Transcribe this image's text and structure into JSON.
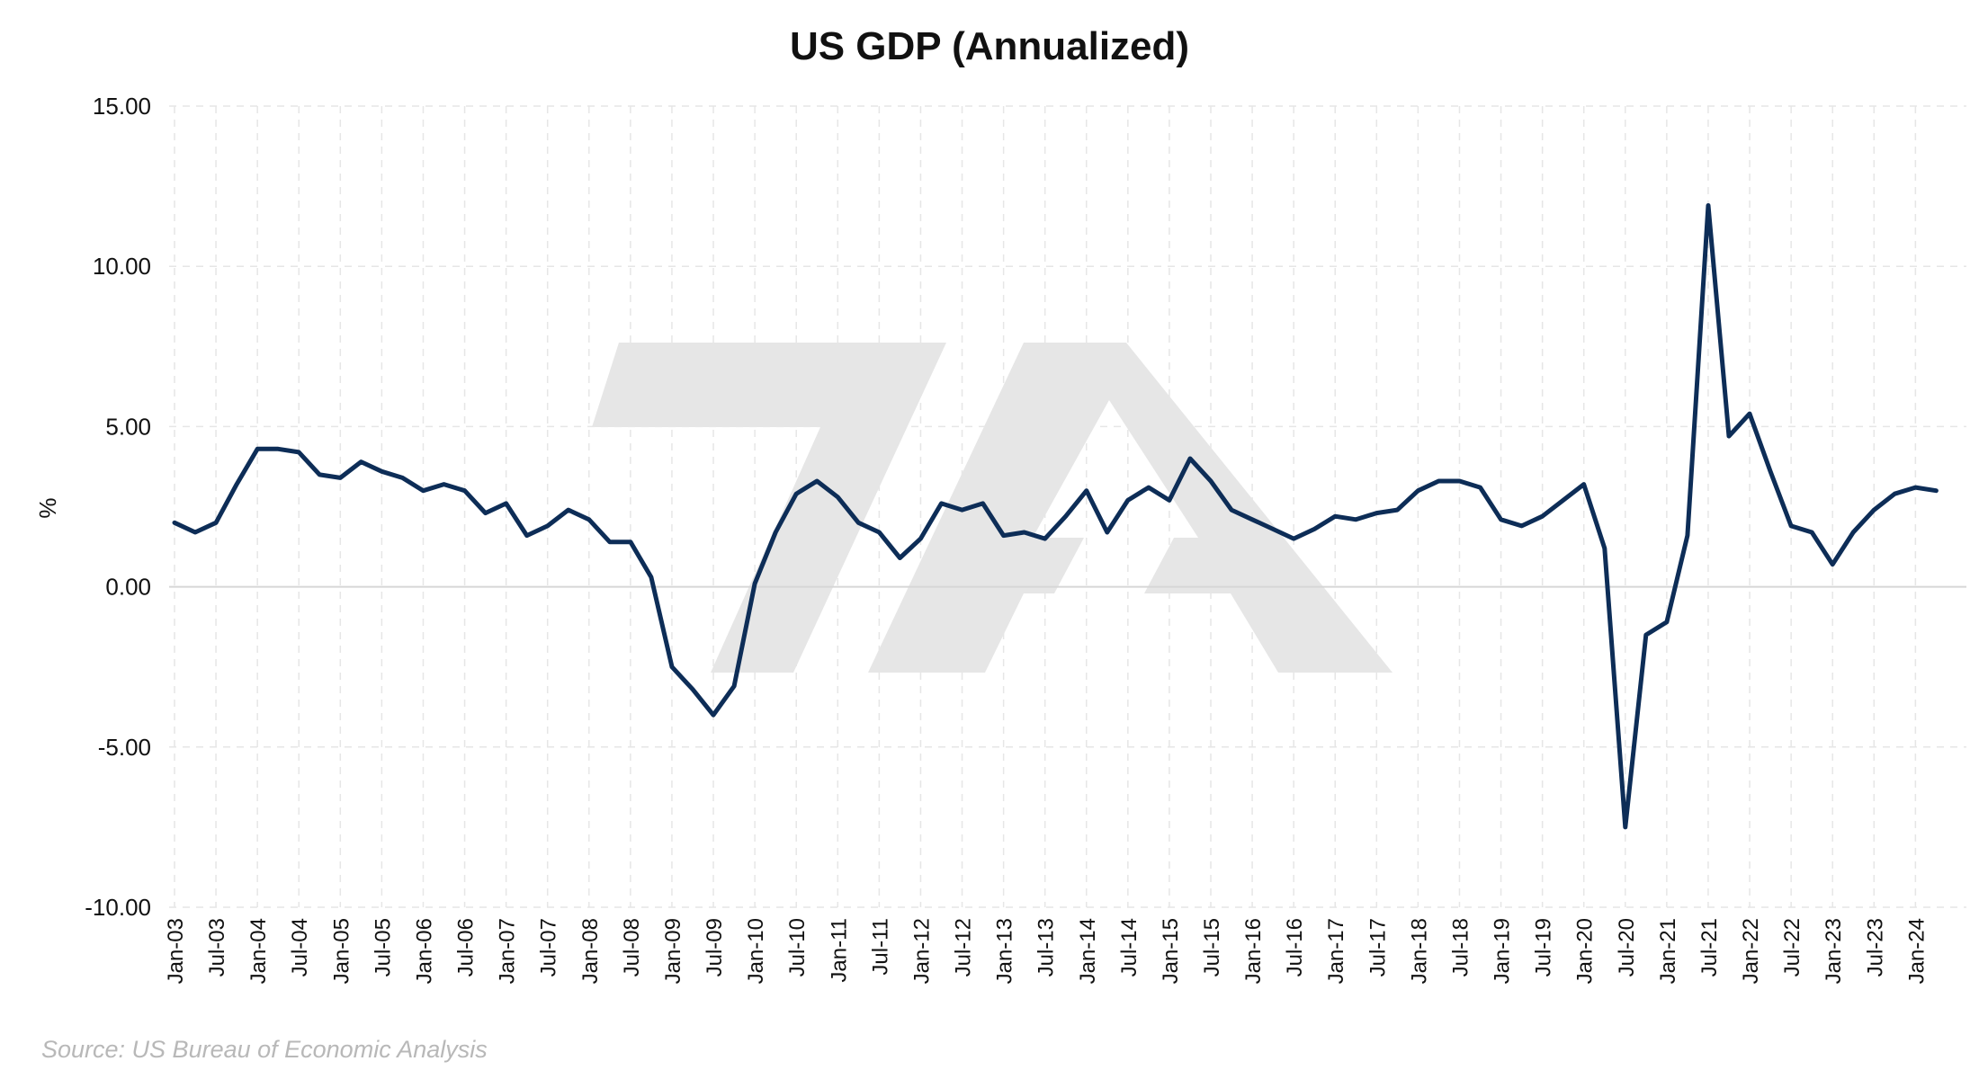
{
  "chart_data": {
    "type": "line",
    "title": "US GDP (Annualized)",
    "xlabel": "",
    "ylabel": "%",
    "ylim": [
      -10,
      15
    ],
    "y_ticks": [
      "15.00",
      "10.00",
      "5.00",
      "0.00",
      "-5.00",
      "-10.00"
    ],
    "x_tick_labels": [
      "Jan-03",
      "Jul-03",
      "Jan-04",
      "Jul-04",
      "Jan-05",
      "Jul-05",
      "Jan-06",
      "Jul-06",
      "Jan-07",
      "Jul-07",
      "Jan-08",
      "Jul-08",
      "Jan-09",
      "Jul-09",
      "Jan-10",
      "Jul-10",
      "Jan-11",
      "Jul-11",
      "Jan-12",
      "Jul-12",
      "Jan-13",
      "Jul-13",
      "Jan-14",
      "Jul-14",
      "Jan-15",
      "Jul-15",
      "Jan-16",
      "Jul-16",
      "Jan-17",
      "Jul-17",
      "Jan-18",
      "Jul-18",
      "Jan-19",
      "Jul-19",
      "Jan-20",
      "Jul-20",
      "Jan-21",
      "Jul-21",
      "Jan-22",
      "Jul-22",
      "Jan-23",
      "Jul-23",
      "Jan-24"
    ],
    "grid": true,
    "legend": "none",
    "series": [
      {
        "color": "#0d2d57",
        "x": [
          "Jan-03",
          "Apr-03",
          "Jul-03",
          "Oct-03",
          "Jan-04",
          "Apr-04",
          "Jul-04",
          "Oct-04",
          "Jan-05",
          "Apr-05",
          "Jul-05",
          "Oct-05",
          "Jan-06",
          "Apr-06",
          "Jul-06",
          "Oct-06",
          "Jan-07",
          "Apr-07",
          "Jul-07",
          "Oct-07",
          "Jan-08",
          "Apr-08",
          "Jul-08",
          "Oct-08",
          "Jan-09",
          "Apr-09",
          "Jul-09",
          "Oct-09",
          "Jan-10",
          "Apr-10",
          "Jul-10",
          "Oct-10",
          "Jan-11",
          "Apr-11",
          "Jul-11",
          "Oct-11",
          "Jan-12",
          "Apr-12",
          "Jul-12",
          "Oct-12",
          "Jan-13",
          "Apr-13",
          "Jul-13",
          "Oct-13",
          "Jan-14",
          "Apr-14",
          "Jul-14",
          "Oct-14",
          "Jan-15",
          "Apr-15",
          "Jul-15",
          "Oct-15",
          "Jan-16",
          "Apr-16",
          "Jul-16",
          "Oct-16",
          "Jan-17",
          "Apr-17",
          "Jul-17",
          "Oct-17",
          "Jan-18",
          "Apr-18",
          "Jul-18",
          "Oct-18",
          "Jan-19",
          "Apr-19",
          "Jul-19",
          "Oct-19",
          "Jan-20",
          "Apr-20",
          "Jul-20",
          "Oct-20",
          "Jan-21",
          "Apr-21",
          "Jul-21",
          "Oct-21",
          "Jan-22",
          "Apr-22",
          "Jul-22",
          "Oct-22",
          "Jan-23",
          "Apr-23",
          "Jul-23",
          "Oct-23",
          "Jan-24",
          "Apr-24"
        ],
        "values": [
          2.0,
          1.7,
          2.0,
          3.2,
          4.3,
          4.3,
          4.2,
          3.5,
          3.4,
          3.9,
          3.6,
          3.4,
          3.0,
          3.2,
          3.0,
          2.3,
          2.6,
          1.6,
          1.9,
          2.4,
          2.1,
          1.4,
          1.4,
          0.3,
          -2.5,
          -3.2,
          -4.0,
          -3.1,
          0.1,
          1.7,
          2.9,
          3.3,
          2.8,
          2.0,
          1.7,
          0.9,
          1.5,
          2.6,
          2.4,
          2.6,
          1.6,
          1.7,
          1.5,
          2.2,
          3.0,
          1.7,
          2.7,
          3.1,
          2.7,
          4.0,
          3.3,
          2.4,
          2.1,
          1.8,
          1.5,
          1.8,
          2.2,
          2.1,
          2.3,
          2.4,
          3.0,
          3.3,
          3.3,
          3.1,
          2.1,
          1.9,
          2.2,
          2.7,
          3.2,
          1.2,
          -7.5,
          -1.5,
          -1.1,
          1.6,
          11.9,
          4.7,
          5.4,
          3.6,
          1.9,
          1.7,
          0.7,
          1.7,
          2.4,
          2.9,
          3.1,
          3.0
        ]
      }
    ],
    "source": "Source: US Bureau of Economic Analysis"
  }
}
